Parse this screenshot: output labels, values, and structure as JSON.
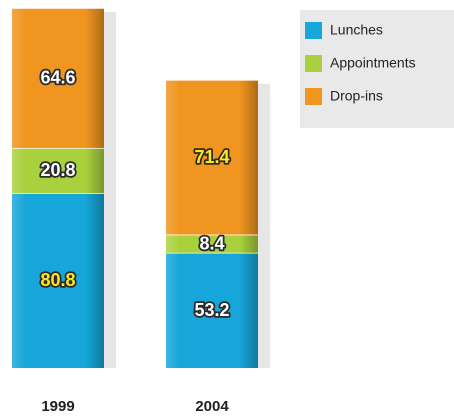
{
  "chart_data": {
    "type": "stacked_bar",
    "categories": [
      "1999",
      "2004"
    ],
    "series": [
      {
        "name": "Lunches",
        "color": "#16a6da",
        "values": [
          80.8,
          53.2
        ]
      },
      {
        "name": "Appointments",
        "color": "#a9d13d",
        "values": [
          20.8,
          8.4
        ]
      },
      {
        "name": "Drop-ins",
        "color": "#f0951f",
        "values": [
          64.6,
          71.4
        ]
      }
    ],
    "legend": "top-right"
  }
}
